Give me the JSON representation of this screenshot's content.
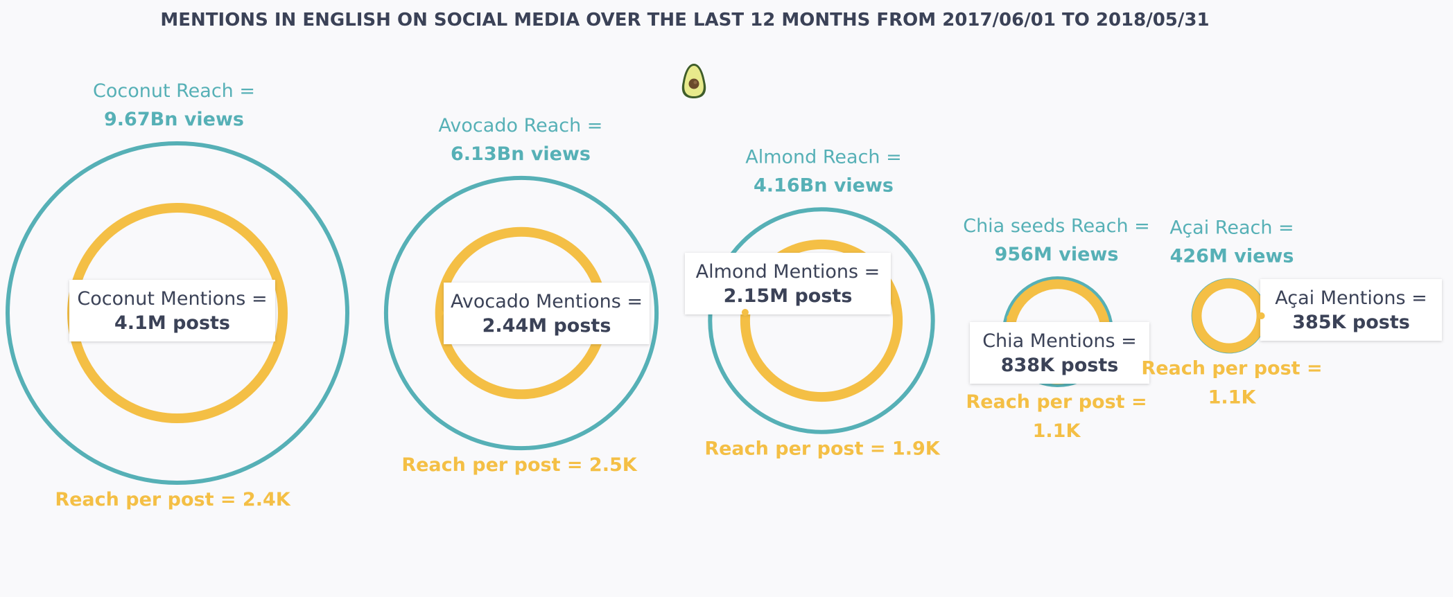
{
  "chart_data": {
    "type": "bubble",
    "title": "MENTIONS IN ENGLISH ON SOCIAL MEDIA OVER THE LAST 12 MONTHS FROM 2017/06/01 TO 2018/05/31",
    "colors": {
      "reach": "#56b0b6",
      "mentions": "#f4bf45",
      "text": "#3b4257",
      "box": "#ffffff"
    },
    "icon": "avocado-icon",
    "items": [
      {
        "name": "Coconut",
        "reach_label": "Coconut Reach =",
        "reach_text": "9.67Bn views",
        "reach_views": 9670000000,
        "mentions_label": "Coconut Mentions =",
        "mentions_text": "4.1M posts",
        "mentions_posts": 4100000,
        "rpp_lines": [
          "Reach per post = 2.4K"
        ],
        "reach_per_post": 2400
      },
      {
        "name": "Avocado",
        "reach_label": "Avocado Reach =",
        "reach_text": "6.13Bn views",
        "reach_views": 6130000000,
        "mentions_label": "Avocado Mentions =",
        "mentions_text": "2.44M posts",
        "mentions_posts": 2440000,
        "rpp_lines": [
          "Reach per post = 2.5K"
        ],
        "reach_per_post": 2500
      },
      {
        "name": "Almond",
        "reach_label": "Almond Reach =",
        "reach_text": "4.16Bn views",
        "reach_views": 4160000000,
        "mentions_label": "Almond Mentions =",
        "mentions_text": "2.15M posts",
        "mentions_posts": 2150000,
        "rpp_lines": [
          "Reach per post = 1.9K"
        ],
        "reach_per_post": 1900
      },
      {
        "name": "Chia seeds",
        "reach_label": "Chia seeds Reach =",
        "reach_text": "956M views",
        "reach_views": 956000000,
        "mentions_label": "Chia Mentions =",
        "mentions_text": "838K posts",
        "mentions_posts": 838000,
        "rpp_lines": [
          "Reach per post =",
          "1.1K"
        ],
        "reach_per_post": 1100
      },
      {
        "name": "Açai",
        "reach_label": "Açai Reach =",
        "reach_text": "426M views",
        "reach_views": 426000000,
        "mentions_label": "Açai Mentions =",
        "mentions_text": "385K posts",
        "mentions_posts": 385000,
        "rpp_lines": [
          "Reach per post =",
          "1.1K"
        ],
        "reach_per_post": 1100
      }
    ]
  }
}
